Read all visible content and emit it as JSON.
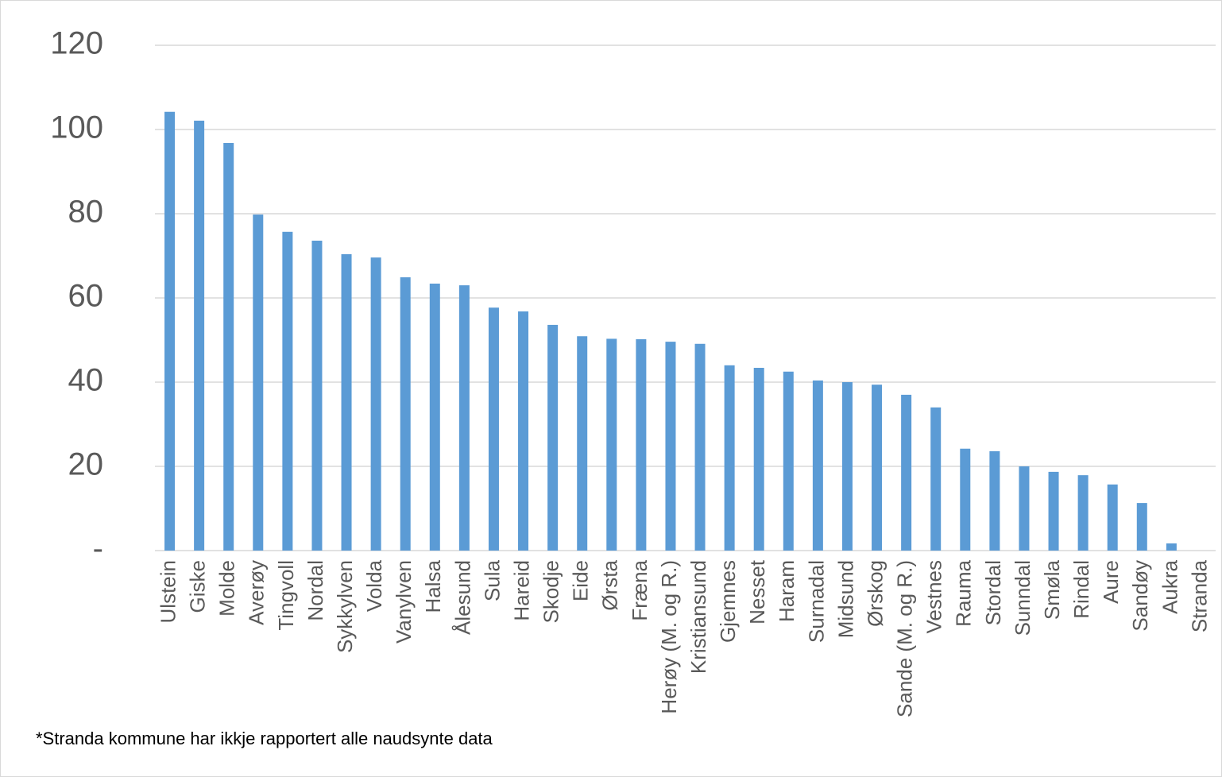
{
  "chart_data": {
    "type": "bar",
    "categories": [
      "Ulstein",
      "Giske",
      "Molde",
      "Averøy",
      "Tingvoll",
      "Nordal",
      "Sykkylven",
      "Volda",
      "Vanylven",
      "Halsa",
      "Ålesund",
      "Sula",
      "Hareid",
      "Skodje",
      "Eide",
      "Ørsta",
      "Fræna",
      "Herøy (M. og R.)",
      "Kristiansund",
      "Gjemnes",
      "Nesset",
      "Haram",
      "Surnadal",
      "Midsund",
      "Ørskog",
      "Sande (M. og R.)",
      "Vestnes",
      "Rauma",
      "Stordal",
      "Sunndal",
      "Smøla",
      "Rindal",
      "Aure",
      "Sandøy",
      "Aukra",
      "Stranda"
    ],
    "values": [
      104.2,
      102.1,
      96.8,
      79.8,
      75.7,
      73.6,
      70.4,
      69.6,
      64.9,
      63.4,
      63.0,
      57.7,
      56.8,
      53.6,
      50.9,
      50.3,
      50.2,
      49.6,
      49.1,
      44.0,
      43.4,
      42.5,
      40.4,
      40.0,
      39.4,
      37.0,
      34.0,
      24.2,
      23.6,
      20.0,
      18.7,
      17.9,
      15.7,
      11.3,
      1.7,
      null
    ],
    "color": "#5b9bd5",
    "ylim": [
      0,
      120
    ],
    "yticks": [
      {
        "value": 0,
        "label": "-"
      },
      20,
      40,
      60,
      80,
      100,
      120
    ],
    "grid": true,
    "footnote": "*Stranda kommune har ikkje rapportert alle naudsynte data"
  }
}
